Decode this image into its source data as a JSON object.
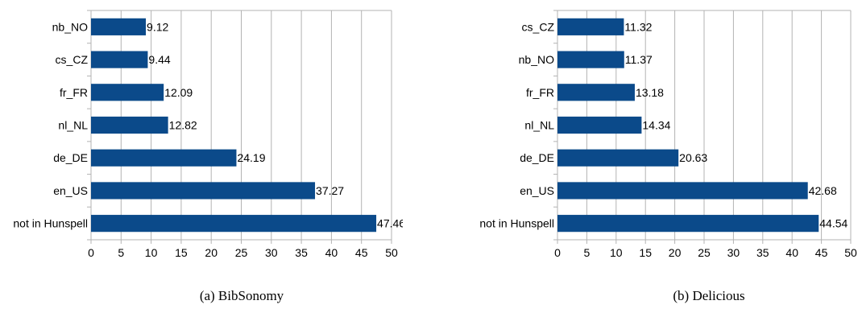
{
  "chart_data": [
    {
      "type": "bar",
      "orientation": "horizontal",
      "caption": "(a) BibSonomy",
      "categories": [
        "nb_NO",
        "cs_CZ",
        "fr_FR",
        "nl_NL",
        "de_DE",
        "en_US",
        "not in Hunspell"
      ],
      "values": [
        9.12,
        9.44,
        12.09,
        12.82,
        24.19,
        37.27,
        47.46
      ],
      "value_labels": [
        "9.12",
        "9.44",
        "12.09",
        "12.82",
        "24.19",
        "37.27",
        "47.46"
      ],
      "xlim": [
        0,
        50
      ],
      "xticks": [
        "0",
        "5",
        "10",
        "15",
        "20",
        "25",
        "30",
        "35",
        "40",
        "45",
        "50"
      ],
      "grid": "vertical",
      "bar_color": "#0b4a8a"
    },
    {
      "type": "bar",
      "orientation": "horizontal",
      "caption": "(b) Delicious",
      "categories": [
        "cs_CZ",
        "nb_NO",
        "fr_FR",
        "nl_NL",
        "de_DE",
        "en_US",
        "not in Hunspell"
      ],
      "values": [
        11.32,
        11.37,
        13.18,
        14.34,
        20.63,
        42.68,
        44.54
      ],
      "value_labels": [
        "11.32",
        "11.37",
        "13.18",
        "14.34",
        "20.63",
        "42.68",
        "44.54"
      ],
      "xlim": [
        0,
        50
      ],
      "xticks": [
        "0",
        "5",
        "10",
        "15",
        "20",
        "25",
        "30",
        "35",
        "40",
        "45",
        "50"
      ],
      "grid": "vertical",
      "bar_color": "#0b4a8a"
    }
  ]
}
